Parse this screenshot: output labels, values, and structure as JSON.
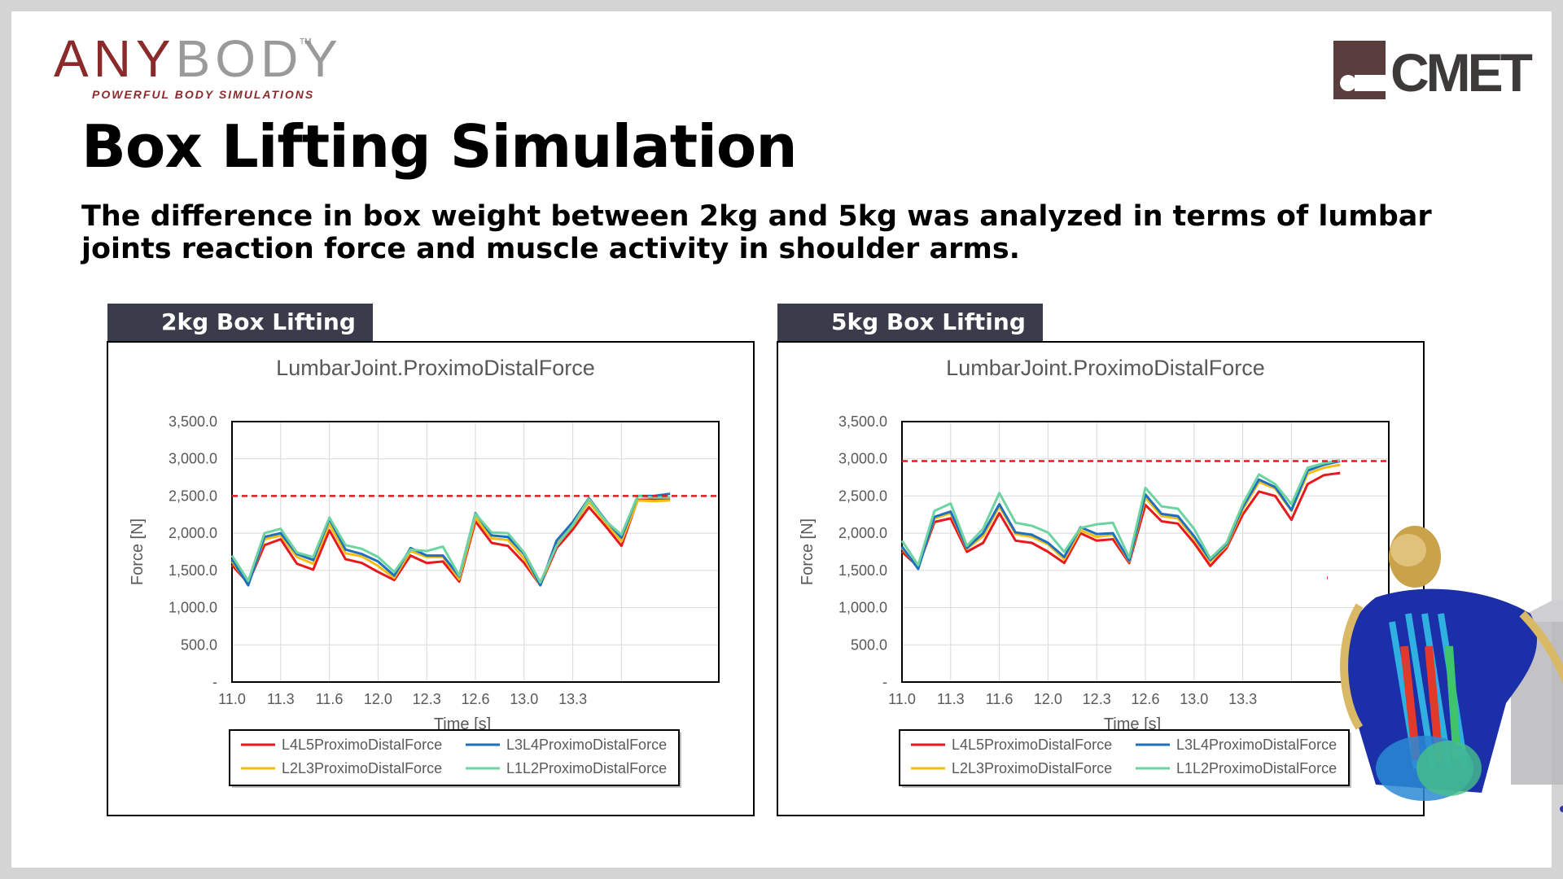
{
  "header": {
    "logo_left_any": "ANY",
    "logo_left_body": "BODY",
    "logo_left_tm": "TM",
    "logo_left_tagline": "POWERFUL BODY SIMULATIONS",
    "logo_right_text": "CMET",
    "title": "Box Lifting Simulation",
    "subtitle": "The difference in box weight between 2kg and 5kg was analyzed in terms of lumbar joints reaction force and muscle activity in shoulder arms."
  },
  "panels": [
    {
      "tab_label": "2kg Box Lifting"
    },
    {
      "tab_label": "5kg Box Lifting"
    }
  ],
  "colors": {
    "tab_bg": "#3a3b4b",
    "logo_red": "#8b2a2a",
    "L4L5": "#e8191c",
    "L3L4": "#1f6fbf",
    "L2L3": "#f5bd12",
    "L1L2": "#6dd3a0",
    "threshold": "#e8191c"
  },
  "chart_data": [
    {
      "type": "line",
      "title": "LumbarJoint.ProximoDistalForce",
      "xlabel": "Time [s]",
      "ylabel": "Force [N]",
      "xlim": [
        11.0,
        14.0
      ],
      "ylim": [
        0,
        3500
      ],
      "x_ticks": [
        "11.0",
        "11.3",
        "11.6",
        "12.0",
        "12.3",
        "12.6",
        "13.0",
        "13.3"
      ],
      "y_ticks": [
        "-",
        "500.0",
        "1,000.0",
        "1,500.0",
        "2,000.0",
        "2,500.0",
        "3,000.0",
        "3,500.0"
      ],
      "grid": true,
      "legend_position": "bottom",
      "reference_line": {
        "y": 2500,
        "style": "dashed",
        "color": "#e8191c"
      },
      "x": [
        11.0,
        11.1,
        11.2,
        11.3,
        11.4,
        11.5,
        11.6,
        11.7,
        11.8,
        11.9,
        12.0,
        12.1,
        12.2,
        12.3,
        12.4,
        12.5,
        12.6,
        12.7,
        12.8,
        12.9,
        13.0,
        13.1,
        13.2,
        13.3,
        13.4,
        13.5,
        13.6,
        13.7
      ],
      "series": [
        {
          "name": "L4L5ProximoDistalForce",
          "color": "#e8191c",
          "values": [
            1570,
            1330,
            1840,
            1920,
            1590,
            1510,
            2040,
            1650,
            1600,
            1480,
            1370,
            1700,
            1600,
            1620,
            1350,
            2160,
            1870,
            1830,
            1600,
            1300,
            1800,
            2050,
            2350,
            2100,
            1830,
            2450,
            2450,
            2460
          ]
        },
        {
          "name": "L3L4ProximoDistalForce",
          "color": "#1f6fbf",
          "values": [
            1650,
            1300,
            1950,
            2000,
            1720,
            1640,
            2190,
            1780,
            1720,
            1620,
            1430,
            1800,
            1700,
            1700,
            1420,
            2270,
            1970,
            1950,
            1720,
            1300,
            1900,
            2150,
            2470,
            2180,
            1940,
            2500,
            2500,
            2530
          ]
        },
        {
          "name": "L2L3ProximoDistalForce",
          "color": "#f5bd12",
          "values": [
            1620,
            1320,
            1920,
            1970,
            1680,
            1590,
            2120,
            1730,
            1690,
            1560,
            1400,
            1760,
            1680,
            1680,
            1380,
            2210,
            1930,
            1910,
            1660,
            1300,
            1850,
            2100,
            2420,
            2150,
            1890,
            2440,
            2430,
            2440
          ]
        },
        {
          "name": "L1L2ProximoDistalForce",
          "color": "#6dd3a0",
          "values": [
            1700,
            1360,
            2000,
            2060,
            1740,
            1680,
            2210,
            1840,
            1790,
            1680,
            1480,
            1780,
            1760,
            1820,
            1430,
            2260,
            2010,
            2000,
            1740,
            1340,
            1830,
            2110,
            2460,
            2170,
            1980,
            2500,
            2480,
            2480
          ]
        }
      ]
    },
    {
      "type": "line",
      "title": "LumbarJoint.ProximoDistalForce",
      "xlabel": "Time [s]",
      "ylabel": "Force [N]",
      "xlim": [
        11.0,
        14.0
      ],
      "ylim": [
        0,
        3500
      ],
      "x_ticks": [
        "11.0",
        "11.3",
        "11.6",
        "12.0",
        "12.3",
        "12.6",
        "13.0",
        "13.3"
      ],
      "y_ticks": [
        "-",
        "500.0",
        "1,000.0",
        "1,500.0",
        "2,000.0",
        "2,500.0",
        "3,000.0",
        "3,500.0"
      ],
      "grid": true,
      "legend_position": "bottom",
      "reference_line": {
        "y": 2970,
        "style": "dashed",
        "color": "#e8191c"
      },
      "x": [
        11.0,
        11.1,
        11.2,
        11.3,
        11.4,
        11.5,
        11.6,
        11.7,
        11.8,
        11.9,
        12.0,
        12.1,
        12.2,
        12.3,
        12.4,
        12.5,
        12.6,
        12.7,
        12.8,
        12.9,
        13.0,
        13.1,
        13.2,
        13.3,
        13.4,
        13.5,
        13.6,
        13.7
      ],
      "series": [
        {
          "name": "L4L5ProximoDistalForce",
          "color": "#e8191c",
          "values": [
            1750,
            1550,
            2150,
            2200,
            1750,
            1870,
            2270,
            1900,
            1870,
            1750,
            1600,
            2000,
            1900,
            1920,
            1600,
            2380,
            2160,
            2130,
            1870,
            1560,
            1800,
            2250,
            2560,
            2500,
            2180,
            2660,
            2780,
            2810
          ]
        },
        {
          "name": "L3L4ProximoDistalForce",
          "color": "#1f6fbf",
          "values": [
            1820,
            1520,
            2220,
            2290,
            1800,
            2000,
            2390,
            2010,
            1980,
            1870,
            1680,
            2080,
            1990,
            2000,
            1630,
            2520,
            2260,
            2230,
            1960,
            1640,
            1850,
            2350,
            2720,
            2620,
            2310,
            2840,
            2920,
            2970
          ]
        },
        {
          "name": "L2L3ProximoDistalForce",
          "color": "#f5bd12",
          "values": [
            1800,
            1540,
            2200,
            2270,
            1790,
            1960,
            2360,
            1990,
            1950,
            1850,
            1650,
            2040,
            1950,
            1980,
            1620,
            2480,
            2230,
            2200,
            1930,
            1620,
            1830,
            2320,
            2690,
            2600,
            2300,
            2800,
            2880,
            2920
          ]
        },
        {
          "name": "L1L2ProximoDistalForce",
          "color": "#6dd3a0",
          "values": [
            1900,
            1570,
            2300,
            2400,
            1830,
            2060,
            2540,
            2140,
            2100,
            2010,
            1750,
            2070,
            2120,
            2140,
            1670,
            2610,
            2360,
            2330,
            2060,
            1660,
            1870,
            2390,
            2790,
            2660,
            2390,
            2880,
            2940,
            2980
          ]
        }
      ]
    }
  ]
}
